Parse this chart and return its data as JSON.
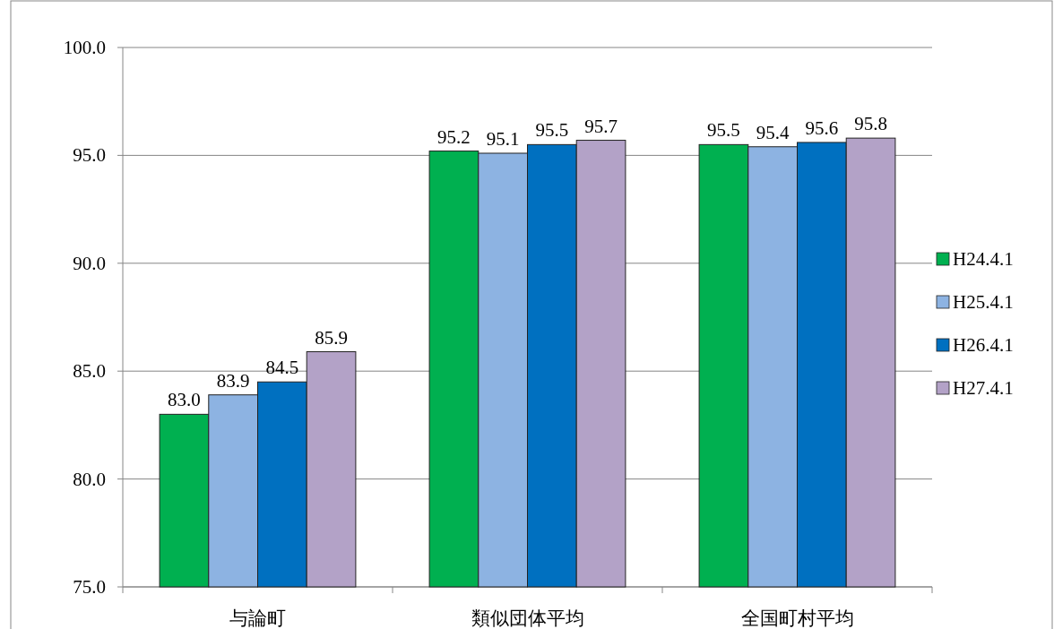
{
  "chart_data": {
    "type": "bar",
    "categories": [
      "与論町",
      "類似団体平均",
      "全国町村平均"
    ],
    "series": [
      {
        "name": "H24.4.1",
        "color": "#00b050",
        "values": [
          83.0,
          95.2,
          95.5
        ],
        "value_labels": [
          "83.0",
          "95.2",
          "95.5"
        ]
      },
      {
        "name": "H25.4.1",
        "color": "#8db3e2",
        "values": [
          83.9,
          95.1,
          95.4
        ],
        "value_labels": [
          "83.9",
          "95.1",
          "95.4"
        ]
      },
      {
        "name": "H26.4.1",
        "color": "#0070c0",
        "values": [
          84.5,
          95.5,
          95.6
        ],
        "value_labels": [
          "84.5",
          "95.5",
          "95.6"
        ]
      },
      {
        "name": "H27.4.1",
        "color": "#b3a2c7",
        "values": [
          85.9,
          95.7,
          95.8
        ],
        "value_labels": [
          "85.9",
          "95.7",
          "95.8"
        ]
      }
    ],
    "ylim": [
      75,
      100
    ],
    "yticks": [
      {
        "value": 75,
        "label": "75.0"
      },
      {
        "value": 80,
        "label": "80.0"
      },
      {
        "value": 85,
        "label": "85.0"
      },
      {
        "value": 90,
        "label": "90.0"
      },
      {
        "value": 95,
        "label": "95.0"
      },
      {
        "value": 100,
        "label": "100.0"
      }
    ],
    "grid": "y",
    "legend": "right"
  }
}
